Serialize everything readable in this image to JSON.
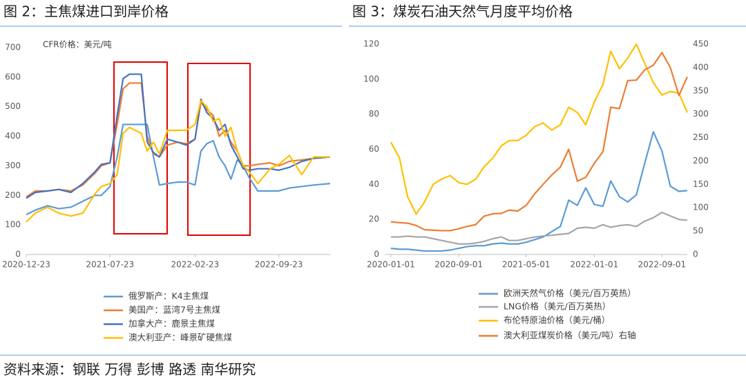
{
  "source": "资料来源：钢联 万得 彭博 路透 南华研究",
  "chart_data": [
    {
      "type": "line",
      "title": "图 2：主焦煤进口到岸价格",
      "annotation": "CFR价格：美元/吨",
      "x": [
        "2020-12-23",
        "2021-01-15",
        "2021-02-15",
        "2021-03-15",
        "2021-04-15",
        "2021-05-15",
        "2021-06-15",
        "2021-07-01",
        "2021-07-23",
        "2021-08-10",
        "2021-08-25",
        "2021-09-10",
        "2021-09-25",
        "2021-10-10",
        "2021-10-25",
        "2021-11-10",
        "2021-11-25",
        "2021-12-15",
        "2022-01-10",
        "2022-02-01",
        "2022-02-23",
        "2022-03-10",
        "2022-03-25",
        "2022-04-10",
        "2022-04-25",
        "2022-05-10",
        "2022-05-25",
        "2022-06-10",
        "2022-06-25",
        "2022-07-10",
        "2022-08-01",
        "2022-09-01",
        "2022-09-23",
        "2022-10-20",
        "2022-11-20",
        "2022-12-20",
        "2023-01-31"
      ],
      "xlim": [
        "2020-12-23",
        "2023-01-31"
      ],
      "xticks": [
        "2020-12-23",
        "2021-07-23",
        "2022-02-23",
        "2022-09-23"
      ],
      "ylim": [
        0,
        700
      ],
      "yticks": [
        0,
        100,
        200,
        300,
        400,
        500,
        600,
        700
      ],
      "series": [
        {
          "name": "俄罗斯产：K4主焦煤",
          "color": "#5b9bd5",
          "values": [
            135,
            150,
            165,
            155,
            160,
            180,
            200,
            200,
            230,
            330,
            440,
            440,
            440,
            440,
            440,
            330,
            235,
            240,
            245,
            245,
            235,
            350,
            375,
            385,
            330,
            300,
            255,
            320,
            300,
            260,
            215,
            215,
            215,
            225,
            230,
            235,
            240
          ]
        },
        {
          "name": "美国产：蓝湾7号主焦煤",
          "color": "#ed7d31",
          "values": [
            195,
            215,
            215,
            220,
            215,
            235,
            275,
            300,
            310,
            440,
            560,
            580,
            580,
            580,
            400,
            340,
            330,
            370,
            380,
            375,
            390,
            515,
            490,
            470,
            400,
            420,
            380,
            350,
            300,
            300,
            305,
            310,
            300,
            315,
            320,
            325,
            330
          ]
        },
        {
          "name": "加拿大产：鹿景主焦煤",
          "color": "#4472c4",
          "values": [
            190,
            210,
            215,
            220,
            210,
            240,
            280,
            305,
            310,
            470,
            595,
            610,
            610,
            610,
            380,
            345,
            330,
            390,
            380,
            370,
            390,
            525,
            480,
            460,
            420,
            440,
            370,
            330,
            290,
            285,
            290,
            290,
            285,
            295,
            315,
            325,
            330
          ]
        },
        {
          "name": "澳大利亚产：峰景矿硬焦煤",
          "color": "#ffc000",
          "values": [
            110,
            140,
            160,
            140,
            130,
            140,
            205,
            230,
            240,
            270,
            410,
            430,
            420,
            410,
            350,
            380,
            340,
            420,
            420,
            420,
            440,
            520,
            500,
            450,
            460,
            400,
            430,
            350,
            300,
            280,
            240,
            290,
            305,
            335,
            270,
            330,
            330
          ]
        }
      ]
    },
    {
      "type": "line",
      "title": "图 3：煤炭石油天然气月度平均价格",
      "x": [
        "2020-01-01",
        "2020-02-01",
        "2020-03-01",
        "2020-04-01",
        "2020-05-01",
        "2020-06-01",
        "2020-07-01",
        "2020-08-01",
        "2020-09-01",
        "2020-10-01",
        "2020-11-01",
        "2020-12-01",
        "2021-01-01",
        "2021-02-01",
        "2021-03-01",
        "2021-04-01",
        "2021-05-01",
        "2021-06-01",
        "2021-07-01",
        "2021-08-01",
        "2021-09-01",
        "2021-10-01",
        "2021-11-01",
        "2021-12-01",
        "2022-01-01",
        "2022-02-01",
        "2022-03-01",
        "2022-04-01",
        "2022-05-01",
        "2022-06-01",
        "2022-07-01",
        "2022-08-01",
        "2022-09-01",
        "2022-10-01",
        "2022-11-01",
        "2022-12-01"
      ],
      "xlim": [
        "2019-12-10",
        "2022-12-01"
      ],
      "xticks": [
        "2020-01-01",
        "2020-09-01",
        "2021-05-01",
        "2022-01-01",
        "2022-09-01"
      ],
      "ylim": [
        0,
        120
      ],
      "yticks": [
        0,
        20,
        40,
        60,
        80,
        100,
        120
      ],
      "y2lim": [
        0,
        450
      ],
      "y2ticks": [
        0,
        50,
        100,
        150,
        200,
        250,
        300,
        350,
        400,
        450
      ],
      "series": [
        {
          "name": "欧洲天然气价格（美元/百万英热）",
          "color": "#5b9bd5",
          "values": [
            3.5,
            3,
            3,
            2.5,
            2,
            2,
            2,
            2.5,
            3.5,
            4.5,
            5,
            5,
            6,
            6.5,
            6,
            6,
            7,
            8.5,
            10,
            13,
            16,
            31,
            28,
            38,
            28.5,
            27.5,
            42,
            33,
            30,
            34,
            52,
            70,
            59,
            39,
            36,
            36.5
          ]
        },
        {
          "name": "LNG价格（美元/百万英热）",
          "color": "#a5a5a5",
          "values": [
            10,
            10,
            10.5,
            10,
            10,
            9,
            8,
            7,
            6,
            6,
            6.5,
            7.5,
            9,
            10,
            8,
            8,
            9,
            10,
            10.5,
            11,
            11.5,
            12,
            15,
            15.5,
            15,
            17,
            15.5,
            16.5,
            17,
            16,
            19,
            21,
            24,
            22,
            20,
            19.5
          ]
        },
        {
          "name": "布伦特原油价格（美元/桶）",
          "color": "#ffc000",
          "values": [
            64,
            55,
            33,
            23,
            30,
            40,
            43,
            45,
            41,
            40,
            43,
            50,
            55,
            62,
            65,
            65,
            68,
            73,
            75,
            71,
            74,
            84,
            81,
            74,
            87,
            97,
            116,
            106,
            112,
            120,
            109,
            98,
            91,
            93,
            92,
            81
          ]
        },
        {
          "name": "澳大利亚煤炭价格（美元/吨）右轴",
          "color": "#ed7d31",
          "axis": "y2",
          "values": [
            70,
            68,
            67,
            62,
            53,
            52,
            51,
            51,
            55,
            60,
            64,
            82,
            87,
            88,
            95,
            93,
            105,
            130,
            150,
            170,
            187,
            225,
            157,
            165,
            195,
            220,
            315,
            312,
            372,
            373,
            395,
            405,
            432,
            400,
            340,
            380
          ]
        }
      ]
    }
  ]
}
